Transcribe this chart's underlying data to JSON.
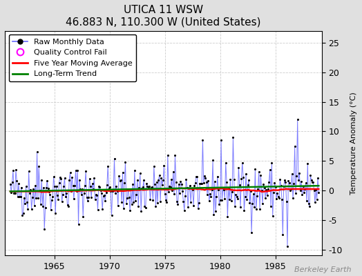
{
  "title": "UTICA 11 WSW",
  "subtitle": "46.883 N, 110.300 W (United States)",
  "ylabel": "Temperature Anomaly (°C)",
  "watermark": "Berkeley Earth",
  "ylim": [
    -11,
    27
  ],
  "yticks": [
    -10,
    -5,
    0,
    5,
    10,
    15,
    20,
    25
  ],
  "xlim": [
    1960.5,
    1989.2
  ],
  "xticks": [
    1965,
    1970,
    1975,
    1980,
    1985
  ],
  "line_color": "#6666ff",
  "marker_color": "black",
  "moving_avg_color": "red",
  "trend_color": "green",
  "qc_fail_color": "magenta",
  "background_color": "#ffffff",
  "grid_color": "#cccccc",
  "fig_background": "#e0e0e0",
  "start_year": 1961,
  "end_year": 1988,
  "seed": 42
}
